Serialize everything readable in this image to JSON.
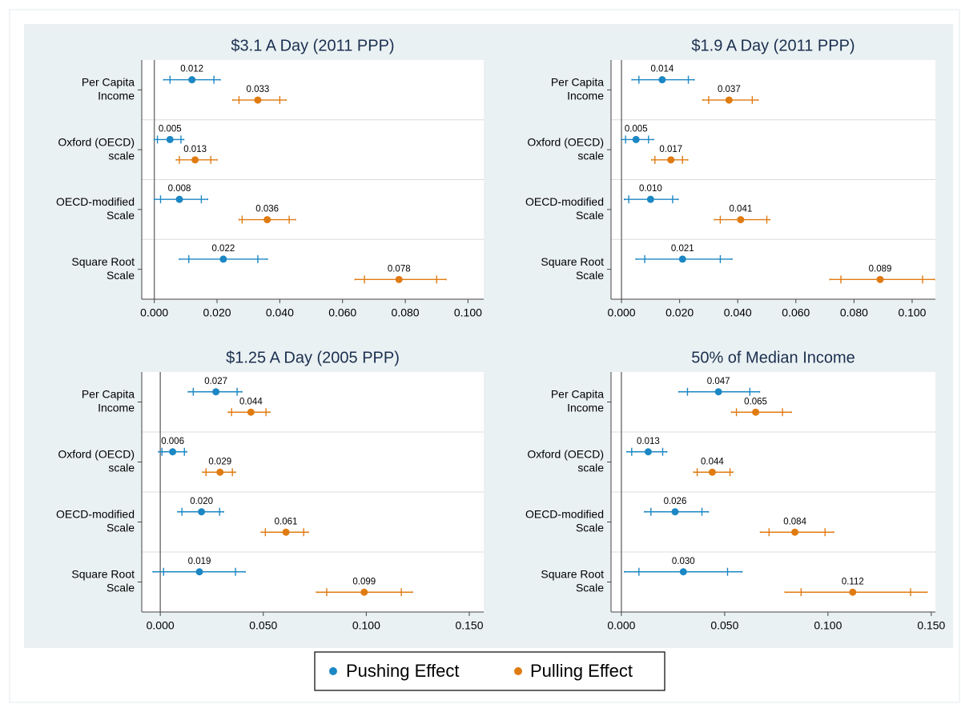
{
  "chart_data": [
    {
      "type": "dotplot",
      "title": "$3.1 A Day (2011 PPP)",
      "categories": [
        [
          "Per Capita",
          "Income"
        ],
        [
          "Oxford (OECD)",
          "scale"
        ],
        [
          "OECD-modified",
          "Scale"
        ],
        [
          "Square Root",
          "Scale"
        ]
      ],
      "xlim": [
        -0.004,
        0.105
      ],
      "xline": 0,
      "xticks": [
        {
          "value": 0,
          "label": "0.000"
        },
        {
          "value": 0.02,
          "label": "0.020"
        },
        {
          "value": 0.04,
          "label": "0.040"
        },
        {
          "value": 0.06,
          "label": "0.060"
        },
        {
          "value": 0.08,
          "label": "0.080"
        },
        {
          "value": 0.1,
          "label": "0.100"
        }
      ],
      "legend": "bottom",
      "series": [
        {
          "name": "Pushing Effect",
          "color": "#1b87c4",
          "values": [
            0.012,
            0.005,
            0.008,
            0.022
          ],
          "value_labels": [
            "0.012",
            "0.005",
            "0.008",
            "0.022"
          ],
          "ci_outer": [
            [
              0.003,
              0.021
            ],
            [
              0.0,
              0.0094
            ],
            [
              0.0,
              0.017
            ],
            [
              0.008,
              0.036
            ]
          ],
          "ci_inner": [
            [
              0.005,
              0.019
            ],
            [
              0.001,
              0.0085
            ],
            [
              0.002,
              0.015
            ],
            [
              0.011,
              0.033
            ]
          ]
        },
        {
          "name": "Pulling Effect",
          "color": "#e07b12",
          "values": [
            0.033,
            0.013,
            0.036,
            0.078
          ],
          "value_labels": [
            "0.033",
            "0.013",
            "0.036",
            "0.078"
          ],
          "ci_outer": [
            [
              0.025,
              0.042
            ],
            [
              0.007,
              0.02
            ],
            [
              0.027,
              0.045
            ],
            [
              0.064,
              0.093
            ]
          ],
          "ci_inner": [
            [
              0.027,
              0.04
            ],
            [
              0.008,
              0.018
            ],
            [
              0.028,
              0.043
            ],
            [
              0.067,
              0.09
            ]
          ]
        }
      ]
    },
    {
      "type": "dotplot",
      "title": "$1.9 A Day (2011 PPP)",
      "categories": [
        [
          "Per Capita",
          "Income"
        ],
        [
          "Oxford (OECD)",
          "scale"
        ],
        [
          "OECD-modified",
          "Scale"
        ],
        [
          "Square Root",
          "Scale"
        ]
      ],
      "xlim": [
        -0.0036,
        0.108
      ],
      "xline": 0,
      "xticks": [
        {
          "value": 0,
          "label": "0.000"
        },
        {
          "value": 0.02,
          "label": "0.020"
        },
        {
          "value": 0.04,
          "label": "0.040"
        },
        {
          "value": 0.06,
          "label": "0.060"
        },
        {
          "value": 0.08,
          "label": "0.080"
        },
        {
          "value": 0.1,
          "label": "0.100"
        }
      ],
      "series": [
        {
          "color": "#1b87c4",
          "values": [
            0.014,
            0.005,
            0.01,
            0.021
          ],
          "value_labels": [
            "0.014",
            "0.005",
            "0.010",
            "0.021"
          ],
          "ci_outer": [
            [
              0.0036,
              0.025
            ],
            [
              0.0,
              0.011
            ],
            [
              0.001,
              0.0195
            ],
            [
              0.005,
              0.038
            ]
          ],
          "ci_inner": [
            [
              0.006,
              0.023
            ],
            [
              0.0014,
              0.0093
            ],
            [
              0.0025,
              0.0176
            ],
            [
              0.008,
              0.034
            ]
          ]
        },
        {
          "color": "#e07b12",
          "values": [
            0.037,
            0.017,
            0.041,
            0.089
          ],
          "value_labels": [
            "0.037",
            "0.017",
            "0.041",
            "0.089"
          ],
          "ci_outer": [
            [
              0.028,
              0.047
            ],
            [
              0.0104,
              0.0228
            ],
            [
              0.032,
              0.051
            ],
            [
              0.0717,
              0.1077
            ]
          ],
          "ci_inner": [
            [
              0.03,
              0.045
            ],
            [
              0.0115,
              0.021
            ],
            [
              0.034,
              0.05
            ],
            [
              0.0755,
              0.1036
            ]
          ]
        }
      ]
    },
    {
      "type": "dotplot",
      "title": "$1.25 A Day (2005 PPP)",
      "categories": [
        [
          "Per Capita",
          "Income"
        ],
        [
          "Oxford (OECD)",
          "scale"
        ],
        [
          "OECD-modified",
          "Scale"
        ],
        [
          "Square Root",
          "Scale"
        ]
      ],
      "xlim": [
        -0.009,
        0.157
      ],
      "xline": 0,
      "xticks": [
        {
          "value": 0,
          "label": "0.000"
        },
        {
          "value": 0.05,
          "label": "0.050"
        },
        {
          "value": 0.1,
          "label": "0.100"
        },
        {
          "value": 0.15,
          "label": "0.150"
        }
      ],
      "series": [
        {
          "color": "#1b87c4",
          "values": [
            0.027,
            0.006,
            0.02,
            0.019
          ],
          "value_labels": [
            "0.027",
            "0.006",
            "0.020",
            "0.019"
          ],
          "ci_outer": [
            [
              0.0136,
              0.0396
            ],
            [
              -0.0008,
              0.0128
            ],
            [
              0.0085,
              0.0307
            ],
            [
              -0.0035,
              0.0412
            ]
          ],
          "ci_inner": [
            [
              0.016,
              0.0373
            ],
            [
              0.0008,
              0.0117
            ],
            [
              0.0105,
              0.0288
            ],
            [
              0.0016,
              0.0365
            ]
          ]
        },
        {
          "color": "#e07b12",
          "values": [
            0.044,
            0.029,
            0.061,
            0.099
          ],
          "value_labels": [
            "0.044",
            "0.029",
            "0.061",
            "0.099"
          ],
          "ci_outer": [
            [
              0.033,
              0.0532
            ],
            [
              0.0206,
              0.0365
            ],
            [
              0.049,
              0.0719
            ],
            [
              0.0758,
              0.1224
            ]
          ],
          "ci_inner": [
            [
              0.0346,
              0.0513
            ],
            [
              0.0222,
              0.035
            ],
            [
              0.051,
              0.0696
            ],
            [
              0.0808,
              0.117
            ]
          ]
        }
      ]
    },
    {
      "type": "dotplot",
      "title": "50% of Median Income",
      "categories": [
        [
          "Per Capita",
          "Income"
        ],
        [
          "Oxford (OECD)",
          "scale"
        ],
        [
          "OECD-modified",
          "Scale"
        ],
        [
          "Square Root",
          "Scale"
        ]
      ],
      "xlim": [
        -0.005,
        0.152
      ],
      "xline": 0,
      "xticks": [
        {
          "value": 0,
          "label": "0.000"
        },
        {
          "value": 0.05,
          "label": "0.050"
        },
        {
          "value": 0.1,
          "label": "0.100"
        },
        {
          "value": 0.15,
          "label": "0.150"
        }
      ],
      "series": [
        {
          "color": "#1b87c4",
          "values": [
            0.047,
            0.013,
            0.026,
            0.03
          ],
          "value_labels": [
            "0.047",
            "0.013",
            "0.026",
            "0.030"
          ],
          "ci_outer": [
            [
              0.0278,
              0.0669
            ],
            [
              0.0027,
              0.022
            ],
            [
              0.0112,
              0.0421
            ],
            [
              0.0015,
              0.0584
            ]
          ],
          "ci_inner": [
            [
              0.032,
              0.0622
            ],
            [
              0.005,
              0.02
            ],
            [
              0.0143,
              0.039
            ],
            [
              0.0085,
              0.0514
            ]
          ]
        },
        {
          "color": "#e07b12",
          "values": [
            0.065,
            0.044,
            0.084,
            0.112
          ],
          "value_labels": [
            "0.065",
            "0.044",
            "0.084",
            "0.112"
          ],
          "ci_outer": [
            [
              0.0533,
              0.0823
            ],
            [
              0.035,
              0.054
            ],
            [
              0.0673,
              0.1028
            ],
            [
              0.0792,
              0.148
            ]
          ],
          "ci_inner": [
            [
              0.0557,
              0.078
            ],
            [
              0.0367,
              0.0526
            ],
            [
              0.0715,
              0.0986
            ],
            [
              0.087,
              0.14
            ]
          ]
        }
      ]
    }
  ]
}
